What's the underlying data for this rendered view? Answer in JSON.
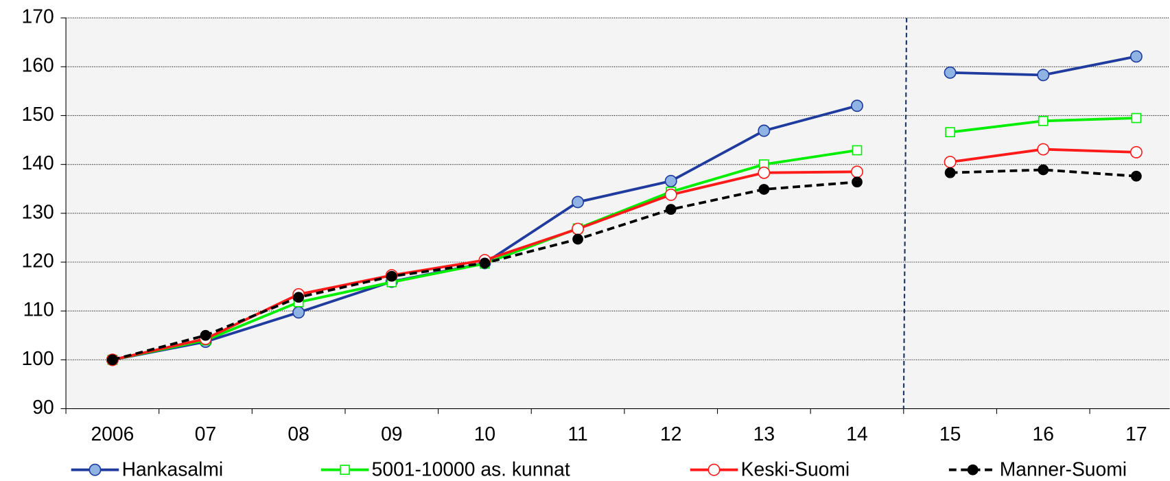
{
  "chart_data": {
    "type": "line",
    "categories": [
      "2006",
      "07",
      "08",
      "09",
      "10",
      "11",
      "12",
      "13",
      "14",
      "15",
      "16",
      "17"
    ],
    "divider_after_category": "14",
    "series": [
      {
        "name": "Hankasalmi",
        "color": "#1f3b9e",
        "marker": "circle",
        "marker_fill": "#8fb4e3",
        "dashed": false,
        "values": [
          100,
          103.7,
          109.7,
          116,
          119.8,
          132.3,
          136.6,
          146.9,
          152,
          158.8,
          158.3,
          162.1
        ]
      },
      {
        "name": "5001-10000 as. kunnat",
        "color": "#00ee00",
        "marker": "square",
        "marker_fill": "#ffffff",
        "dashed": false,
        "values": [
          100,
          104,
          111.8,
          115.9,
          119.7,
          126.9,
          134.4,
          140,
          142.9,
          146.6,
          148.9,
          149.5
        ]
      },
      {
        "name": "Keski-Suomi",
        "color": "#ff1a1a",
        "marker": "circle",
        "marker_fill": "#ffffff",
        "dashed": false,
        "values": [
          100,
          104.3,
          113.4,
          117.3,
          120.4,
          126.8,
          133.8,
          138.3,
          138.5,
          140.5,
          143.1,
          142.5
        ]
      },
      {
        "name": "Manner-Suomi",
        "color": "#000000",
        "marker": "dot",
        "marker_fill": "#000000",
        "dashed": true,
        "values": [
          100,
          105,
          112.8,
          117.1,
          119.8,
          124.7,
          130.8,
          134.9,
          136.4,
          138.3,
          138.9,
          137.6
        ]
      }
    ],
    "ylim": [
      90,
      170
    ],
    "yticks": [
      90,
      100,
      110,
      120,
      130,
      140,
      150,
      160,
      170
    ],
    "grid": true,
    "legend": "bottom"
  }
}
